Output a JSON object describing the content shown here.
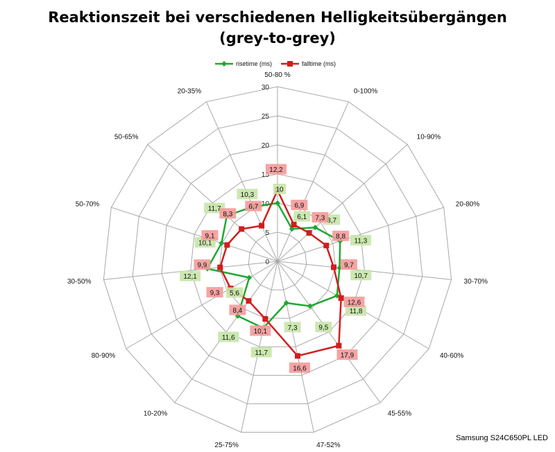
{
  "footnote": "Samsung S24C650PL LED",
  "colors": {
    "rise": "#1fa832",
    "fall": "#d01e1e",
    "rise_label_bg": "#c7e5a8",
    "fall_label_bg": "#f49a9a",
    "grid": "#a8a8a8"
  },
  "chart_data": {
    "type": "radar",
    "title_lines": [
      "Reaktionszeit bei verschiedenen Helligkeitsübergängen",
      "(grey-to-grey)"
    ],
    "categories": [
      "50-80 %",
      "0-100%",
      "10-90%",
      "20-80%",
      "30-70%",
      "40-60%",
      "45-55%",
      "47-52%",
      "25-75%",
      "10-20%",
      "80-90%",
      "30-50%",
      "50-70%",
      "50-65%",
      "20-35%"
    ],
    "r_ticks": [
      0,
      5,
      10,
      15,
      20,
      25,
      30
    ],
    "r_tick_labels": [
      "0",
      "5",
      "10",
      "15",
      "20",
      "25",
      "30"
    ],
    "rlim": [
      0,
      30
    ],
    "legend": {
      "position": "top"
    },
    "series": [
      {
        "name": "risetime (ms)",
        "key": "rise",
        "values": [
          10,
          6.1,
          8.7,
          11.3,
          10.7,
          11.8,
          9.5,
          7.3,
          11.7,
          11.6,
          5.6,
          12.1,
          10.1,
          11.7,
          10.3
        ],
        "labels": [
          "10",
          "6,1",
          "8,7",
          "11,3",
          "10,7",
          "11,8",
          "9,5",
          "7,3",
          "11,7",
          "11,6",
          "5,6",
          "12,1",
          "10,1",
          "11,7",
          "10,3"
        ]
      },
      {
        "name": "falltime (ms)",
        "key": "fall",
        "values": [
          12.2,
          6.9,
          7.3,
          8.8,
          9.7,
          12.6,
          17.9,
          16.6,
          10.1,
          8.4,
          9.3,
          9.9,
          9.1,
          8.3,
          6.7
        ],
        "labels": [
          "12,2",
          "6,9",
          "7,3",
          "8,8",
          "9,7",
          "12,6",
          "17,9",
          "16,6",
          "10,1",
          "8,4",
          "9,3",
          "9,9",
          "9,1",
          "8,3",
          "6,7"
        ]
      }
    ]
  }
}
